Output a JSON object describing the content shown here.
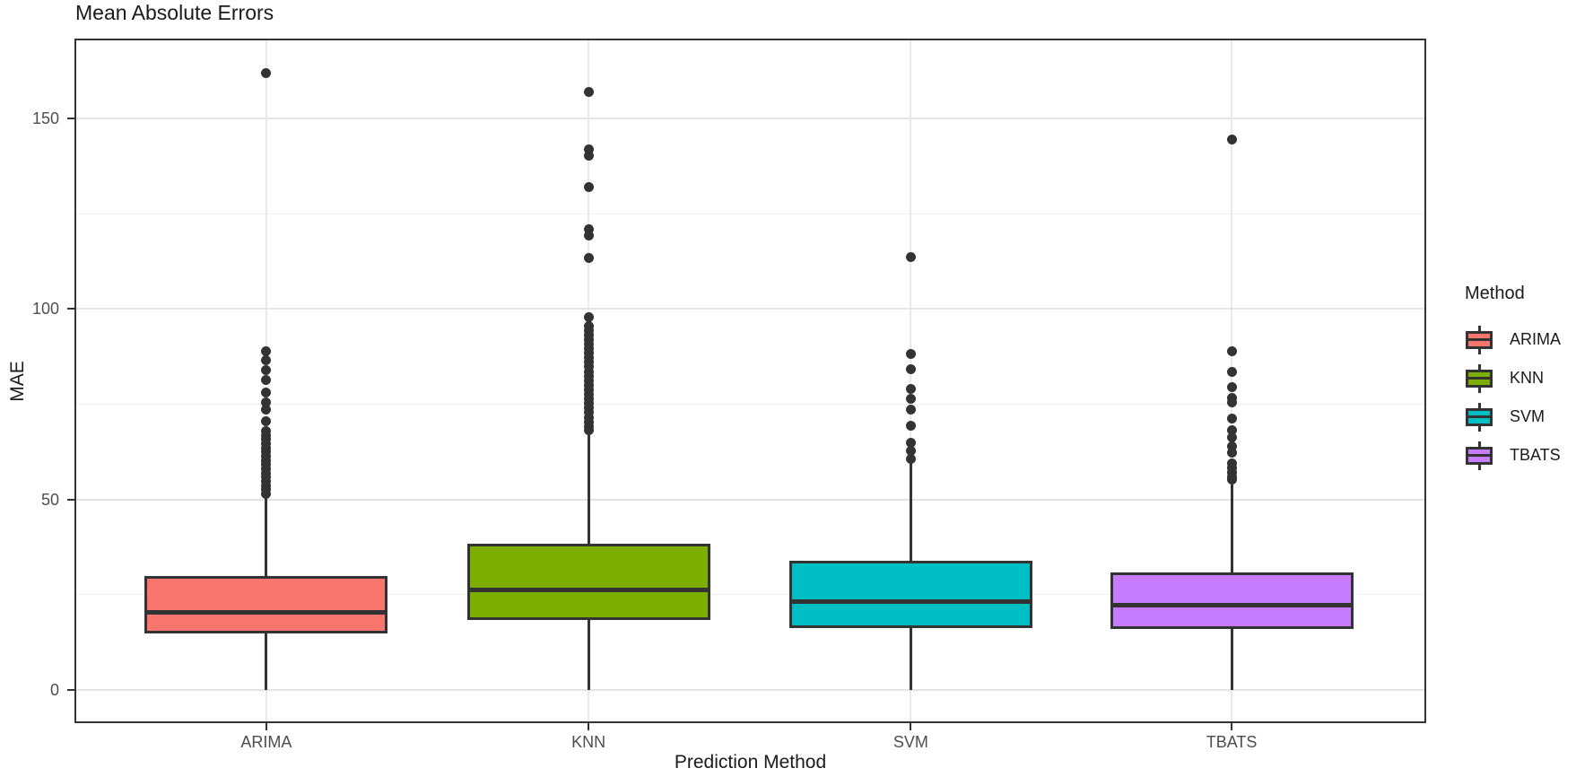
{
  "figure": {
    "title": "Mean Absolute Errors",
    "x_axis_title": "Prediction Method",
    "y_axis_title": "MAE"
  },
  "legend": {
    "title": "Method",
    "entries": [
      {
        "label": "ARIMA",
        "color": "#F8766D"
      },
      {
        "label": "KNN",
        "color": "#7CAE00"
      },
      {
        "label": "SVM",
        "color": "#00BFC4"
      },
      {
        "label": "TBATS",
        "color": "#C77CFF"
      }
    ]
  },
  "chart_data": {
    "type": "boxplot",
    "title": "Mean Absolute Errors",
    "xlabel": "Prediction Method",
    "ylabel": "MAE",
    "legend_title": "Method",
    "legend_position": "right",
    "grid": true,
    "categories": [
      "ARIMA",
      "KNN",
      "SVM",
      "TBATS"
    ],
    "y_ticks": [
      0,
      50,
      100,
      150
    ],
    "y_minor_gridlines": [
      25,
      75,
      125
    ],
    "ylim": [
      -8.2,
      170.5
    ],
    "colors": {
      "stroke": "#333333",
      "major_grid": "#e4e4e4",
      "minor_grid": "#f0f0f0",
      "tick_label": "#4d4d4d",
      "text": "#1a1a1a"
    },
    "series": [
      {
        "name": "ARIMA",
        "fill": "#F8766D",
        "stats": {
          "whisker_low": 0,
          "q1": 14.8,
          "median": 21,
          "q3": 30,
          "whisker_high": 51
        },
        "outliers": [
          161.8,
          89,
          86.5,
          84,
          81.5,
          78,
          75.5,
          73.5,
          70.5,
          68,
          66.9,
          65.8,
          64.7,
          63.6,
          62.5,
          61.4,
          60.3,
          59.2,
          58.1,
          57,
          55.9,
          54.8,
          53.7,
          52.6,
          51.5
        ]
      },
      {
        "name": "KNN",
        "fill": "#7CAE00",
        "stats": {
          "whisker_low": 0,
          "q1": 18.3,
          "median": 27,
          "q3": 38.4,
          "whisker_high": 68
        },
        "outliers": [
          157,
          142,
          140.3,
          132,
          121,
          119.3,
          113.4,
          97.8,
          95.6,
          94.4,
          93.2,
          92,
          90.8,
          89.6,
          88.4,
          87.2,
          86,
          84.8,
          83.6,
          82.4,
          81.2,
          80,
          78.8,
          77.6,
          76.4,
          75.2,
          74,
          72.8,
          71.6,
          70.4,
          69.2,
          68.2
        ]
      },
      {
        "name": "SVM",
        "fill": "#00BFC4",
        "stats": {
          "whisker_low": 0,
          "q1": 16.4,
          "median": 24,
          "q3": 34,
          "whisker_high": 60
        },
        "outliers": [
          113.6,
          88.2,
          84.2,
          79.1,
          76.4,
          73.6,
          69.3,
          65,
          62.7,
          60.7
        ]
      },
      {
        "name": "TBATS",
        "fill": "#C77CFF",
        "stats": {
          "whisker_low": 0,
          "q1": 16,
          "median": 23,
          "q3": 31,
          "whisker_high": 54
        },
        "outliers": [
          144.6,
          89,
          83.5,
          79.5,
          76.7,
          75.6,
          71.3,
          68.2,
          66.2,
          63.9,
          62.3,
          59.6,
          58.2,
          57.1,
          56,
          55.2
        ]
      }
    ]
  }
}
